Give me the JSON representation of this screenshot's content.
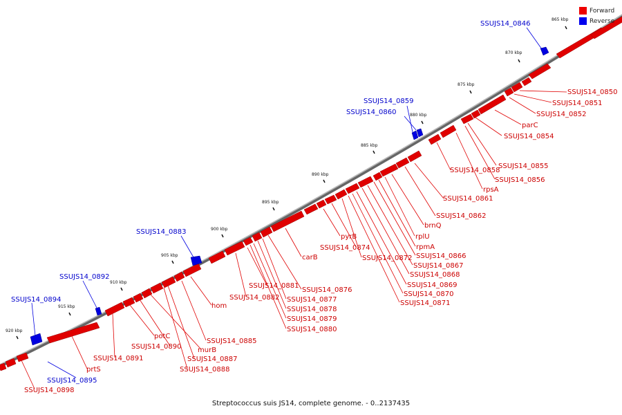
{
  "legend": [
    {
      "label": "Forward",
      "color": "#ee0000"
    },
    {
      "label": "Reverse",
      "color": "#0000ee"
    }
  ],
  "caption": "Streptococcus suis JS14, complete genome. - 0..2137435",
  "colors": {
    "forward": "#ee0000",
    "reverse": "#0000ee",
    "backbone": "#888888",
    "tick": "#111111"
  },
  "kbp_ticks": [
    "865 kbp",
    "870 kbp",
    "875 kbp",
    "880 kbp",
    "885 kbp",
    "890 kbp",
    "895 kbp",
    "900 kbp",
    "905 kbp",
    "910 kbp",
    "915 kbp",
    "920 kbp"
  ],
  "forward_labels": [
    "SSUJS14_0850",
    "SSUJS14_0851",
    "SSUJS14_0852",
    "parC",
    "SSUJS14_0854",
    "SSUJS14_0855",
    "SSUJS14_0856",
    "rpsA",
    "SSUJS14_0858",
    "SSUJS14_0861",
    "SSUJS14_0862",
    "brnQ",
    "rplU",
    "rpmA",
    "SSUJS14_0866",
    "SSUJS14_0867",
    "SSUJS14_0868",
    "SSUJS14_0869",
    "SSUJS14_0870",
    "SSUJS14_0871",
    "SSUJS14_0872",
    "SSUJS14_0874",
    "pyrB",
    "carB",
    "SSUJS14_0876",
    "SSUJS14_0877",
    "SSUJS14_0878",
    "SSUJS14_0879",
    "SSUJS14_0880",
    "SSUJS14_0881",
    "SSUJS14_0882",
    "hom",
    "SSUJS14_0885",
    "SSUJS14_0887",
    "SSUJS14_0888",
    "murB",
    "SSUJS14_0890",
    "potC",
    "SSUJS14_0891",
    "prtS",
    "SSUJS14_0898"
  ],
  "reverse_labels": [
    "SSUJS14_0846",
    "SSUJS14_0859",
    "SSUJS14_0860",
    "SSUJS14_0883",
    "SSUJS14_0892",
    "SSUJS14_0894",
    "SSUJS14_0895"
  ]
}
